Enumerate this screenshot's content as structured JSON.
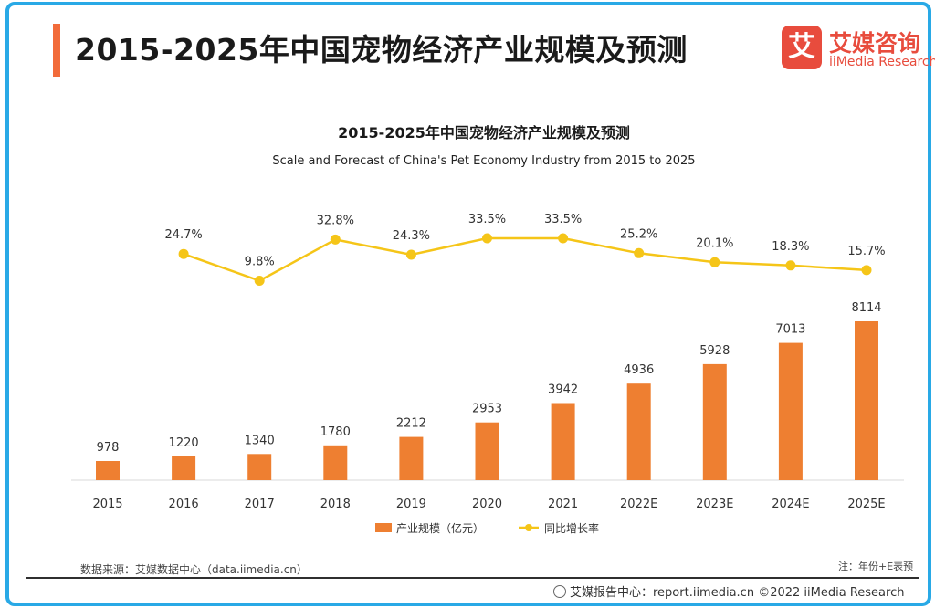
{
  "page": {
    "title": "2015-2025年中国宠物经济产业规模及预测",
    "logo_cn": "艾媒咨询",
    "logo_mark": "艾",
    "logo_en": "iiMedia Research",
    "source": "数据来源：艾媒数据中心（data.iimedia.cn）",
    "note": "注：年份+E表预",
    "footer": "艾媒报告中心：report.iimedia.cn   ©2022  iiMedia Research"
  },
  "chart_data": {
    "type": "bar",
    "title": "2015-2025年中国宠物经济产业规模及预测",
    "subtitle": "Scale and Forecast of China's Pet Economy Industry from 2015 to 2025",
    "categories": [
      "2015",
      "2016",
      "2017",
      "2018",
      "2019",
      "2020",
      "2021",
      "2022E",
      "2023E",
      "2024E",
      "2025E"
    ],
    "series": [
      {
        "name": "产业规模（亿元）",
        "type": "bar",
        "color": "#ee7f31",
        "values": [
          978,
          1220,
          1340,
          1780,
          2212,
          2953,
          3942,
          4936,
          5928,
          7013,
          8114
        ],
        "labels": [
          "978",
          "1220",
          "1340",
          "1780",
          "2212",
          "2953",
          "3942",
          "4936",
          "5928",
          "7013",
          "8114"
        ]
      },
      {
        "name": "同比增长率",
        "type": "line",
        "color": "#f5c518",
        "values": [
          null,
          24.7,
          9.8,
          32.8,
          24.3,
          33.5,
          33.5,
          25.2,
          20.1,
          18.3,
          15.7
        ],
        "labels": [
          "",
          "24.7%",
          "9.8%",
          "32.8%",
          "24.3%",
          "33.5%",
          "33.5%",
          "25.2%",
          "20.1%",
          "18.3%",
          "15.7%"
        ]
      }
    ],
    "legend": "bottom",
    "grid": false
  }
}
